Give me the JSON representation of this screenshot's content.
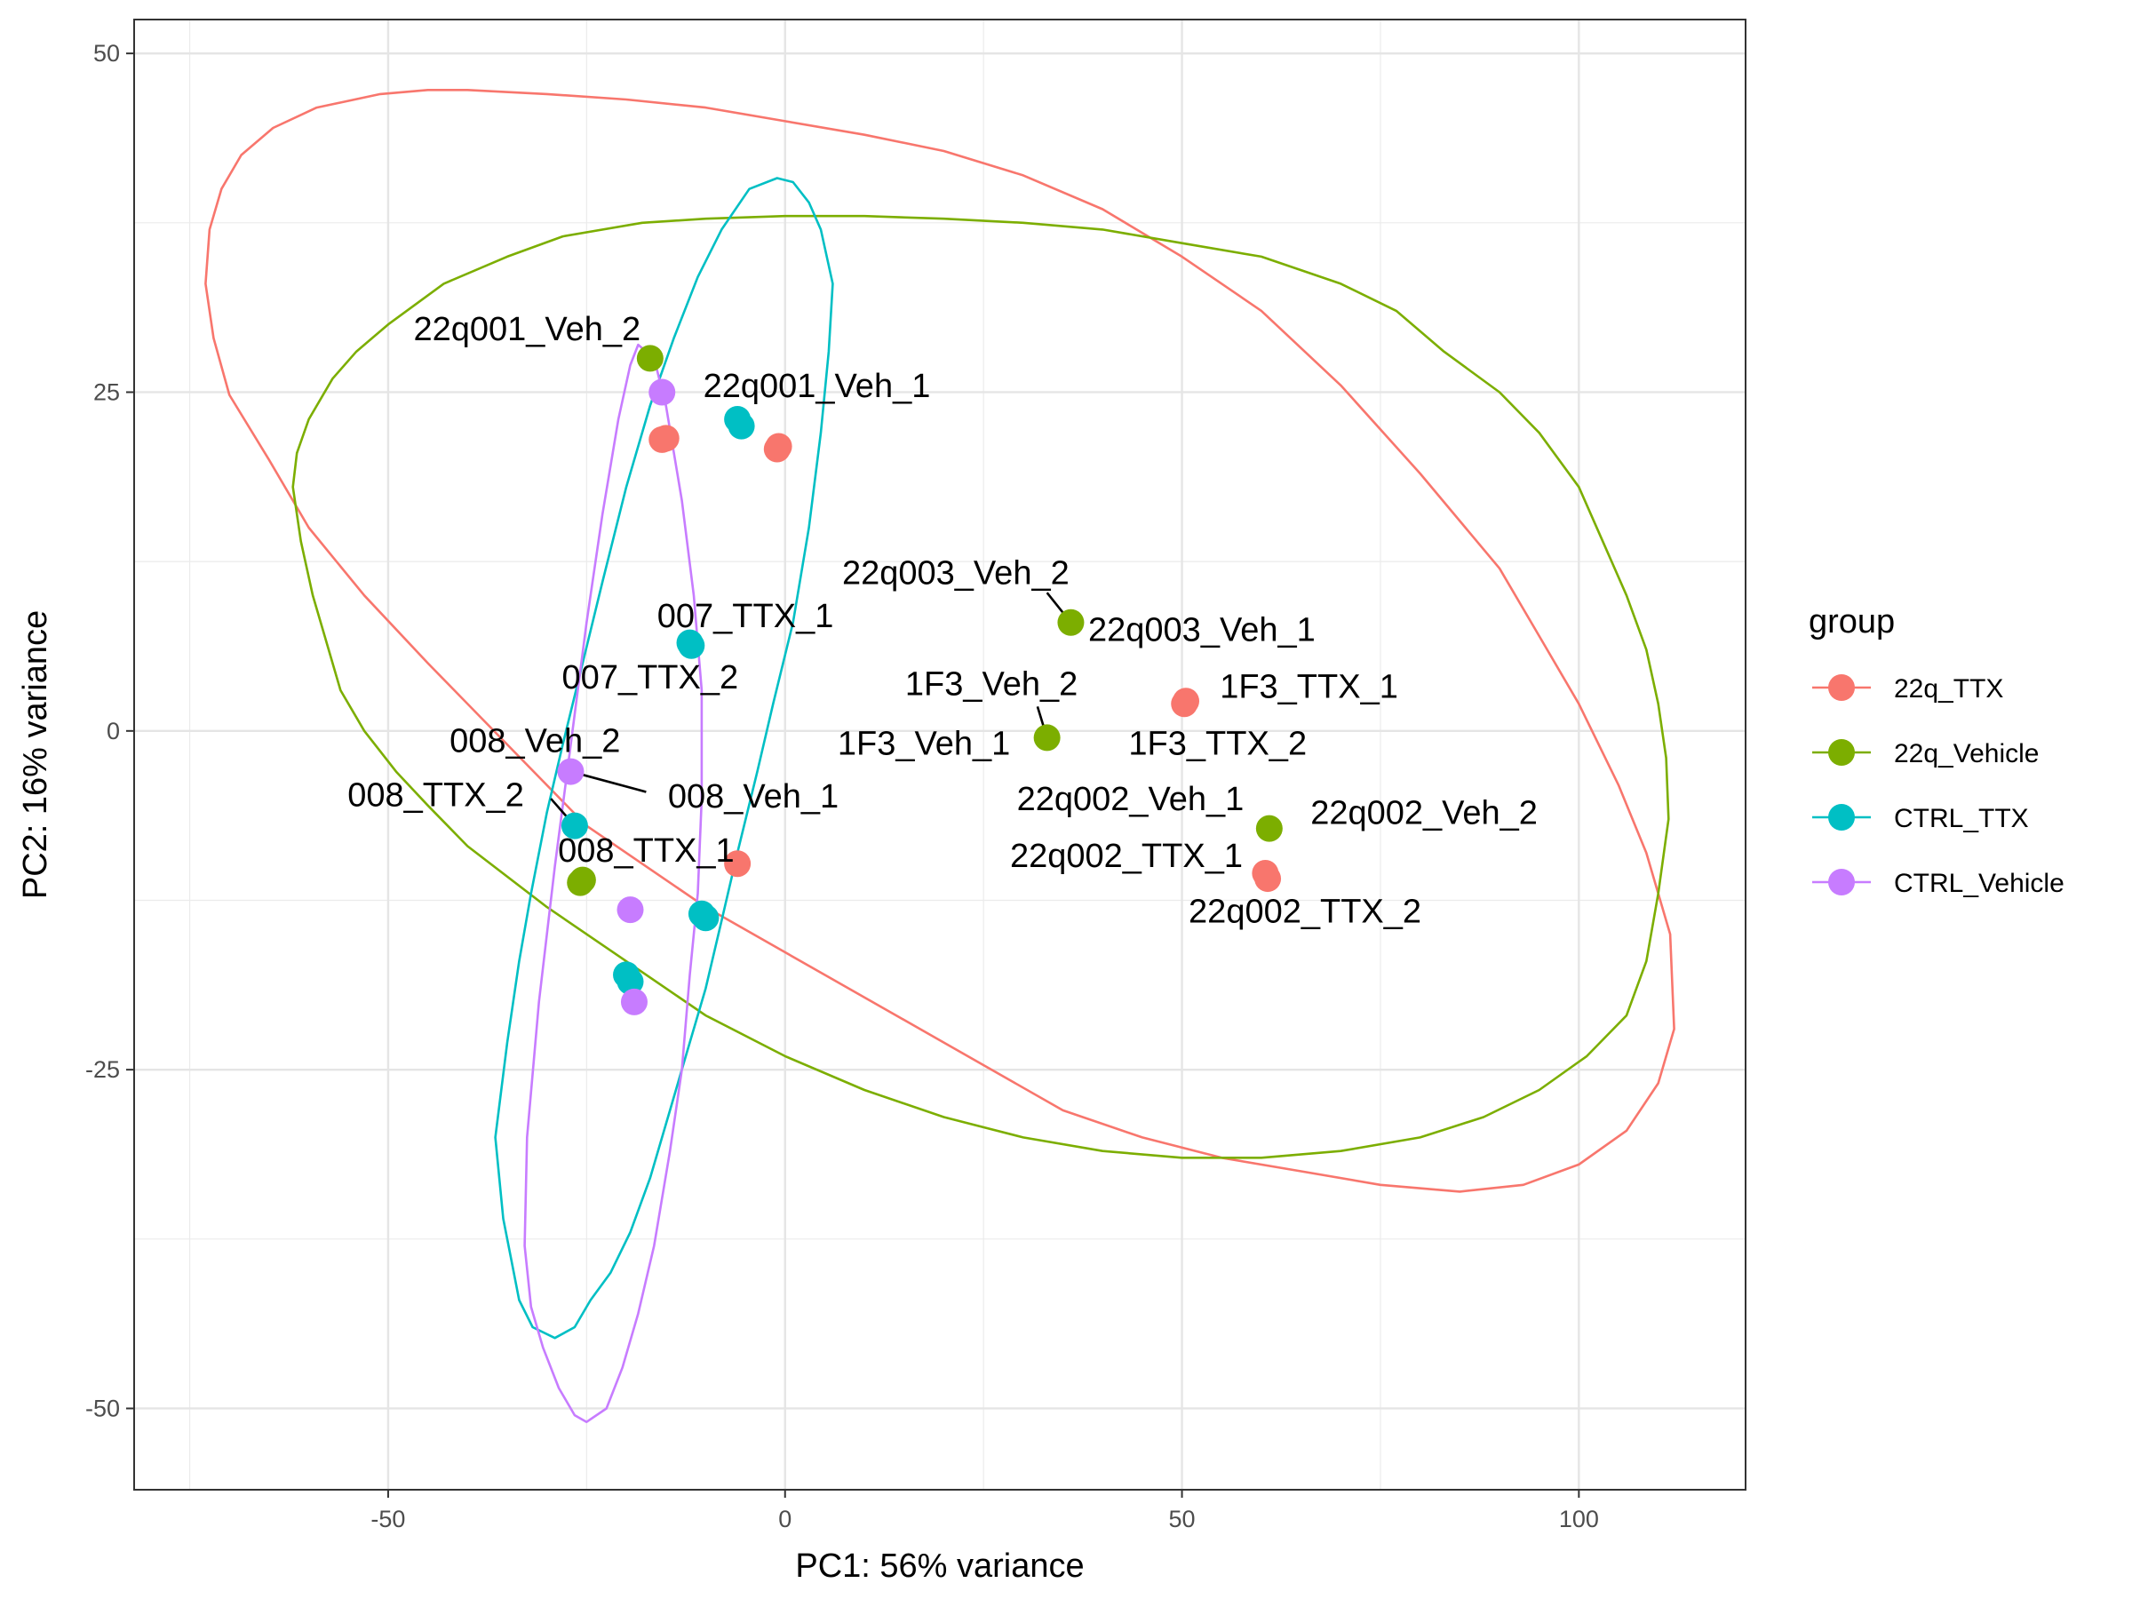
{
  "chart_data": {
    "type": "scatter",
    "title": "",
    "xlabel": "PC1: 56% variance",
    "ylabel": "PC2: 16% variance",
    "xlim": [
      -82,
      121
    ],
    "ylim": [
      -56,
      52.5
    ],
    "xticks": [
      -50,
      0,
      50,
      100
    ],
    "yticks": [
      -50,
      -25,
      0,
      25,
      50
    ],
    "xtick_labels": [
      "-50",
      "0",
      "50",
      "100"
    ],
    "ytick_labels": [
      "-50",
      "-25",
      "0",
      "25",
      "50"
    ],
    "grid": true,
    "legend": {
      "title": "group",
      "position": "right"
    },
    "series": [
      {
        "name": "22q_TTX",
        "color": "#F8766D",
        "points": [
          {
            "x": -15.5,
            "y": 21.5,
            "label": ""
          },
          {
            "x": -15.0,
            "y": 21.6,
            "label": ""
          },
          {
            "x": -1.0,
            "y": 20.8,
            "label": ""
          },
          {
            "x": -0.8,
            "y": 21.0,
            "label": ""
          },
          {
            "x": -6.0,
            "y": -9.8,
            "label": "008_TTX_1"
          },
          {
            "x": 50.3,
            "y": 2.0,
            "label": "1F3_TTX_1"
          },
          {
            "x": 50.5,
            "y": 2.2,
            "label": "1F3_TTX_2"
          },
          {
            "x": 60.5,
            "y": -10.5,
            "label": "22q002_TTX_1"
          },
          {
            "x": 60.8,
            "y": -10.9,
            "label": "22q002_TTX_2"
          }
        ],
        "ellipse": [
          [
            -45,
            47.3
          ],
          [
            -51,
            47
          ],
          [
            -59,
            46
          ],
          [
            -64.5,
            44.5
          ],
          [
            -68.5,
            42.5
          ],
          [
            -71,
            40
          ],
          [
            -72.5,
            37
          ],
          [
            -73,
            33
          ],
          [
            -72,
            29
          ],
          [
            -70,
            24.8
          ],
          [
            -65,
            20
          ],
          [
            -60,
            15
          ],
          [
            -53,
            10
          ],
          [
            -45,
            5
          ],
          [
            -35,
            -1
          ],
          [
            -25,
            -7
          ],
          [
            -10,
            -13
          ],
          [
            5,
            -18
          ],
          [
            20,
            -23
          ],
          [
            35,
            -28
          ],
          [
            45,
            -30
          ],
          [
            55,
            -31.5
          ],
          [
            65,
            -32.5
          ],
          [
            75,
            -33.5
          ],
          [
            85,
            -34
          ],
          [
            93,
            -33.5
          ],
          [
            100,
            -32
          ],
          [
            106,
            -29.5
          ],
          [
            110,
            -26
          ],
          [
            112,
            -22
          ],
          [
            111.5,
            -15
          ],
          [
            108.5,
            -9
          ],
          [
            105,
            -4
          ],
          [
            100,
            2
          ],
          [
            95,
            7
          ],
          [
            90,
            12
          ],
          [
            80,
            19
          ],
          [
            70,
            25.5
          ],
          [
            60,
            31
          ],
          [
            50,
            35
          ],
          [
            40,
            38.5
          ],
          [
            30,
            41
          ],
          [
            20,
            42.8
          ],
          [
            10,
            44
          ],
          [
            0,
            45
          ],
          [
            -10,
            46
          ],
          [
            -20,
            46.6
          ],
          [
            -30,
            47
          ],
          [
            -40,
            47.3
          ],
          [
            -45,
            47.3
          ]
        ]
      },
      {
        "name": "22q_Vehicle",
        "color": "#7CAE00",
        "points": [
          {
            "x": -17.0,
            "y": 27.5,
            "label": "22q001_Veh_2"
          },
          {
            "x": 36.0,
            "y": 8.0,
            "label": "22q003_Veh_1"
          },
          {
            "x": 33.0,
            "y": -0.5,
            "label": "1F3_Veh_1"
          },
          {
            "x": 61.0,
            "y": -7.2,
            "label": "22q002_Veh_2"
          },
          {
            "x": -25.5,
            "y": -11.0,
            "label": ""
          },
          {
            "x": -25.8,
            "y": -11.2,
            "label": ""
          }
        ],
        "ellipse": [
          [
            -10,
            37.8
          ],
          [
            -18,
            37.5
          ],
          [
            -28,
            36.5
          ],
          [
            -35,
            35
          ],
          [
            -43,
            33
          ],
          [
            -50,
            30
          ],
          [
            -54,
            28
          ],
          [
            -57,
            26
          ],
          [
            -60,
            23
          ],
          [
            -61.5,
            20.5
          ],
          [
            -62,
            18
          ],
          [
            -61,
            14
          ],
          [
            -59.5,
            10
          ],
          [
            -58,
            7
          ],
          [
            -56,
            3
          ],
          [
            -53,
            0
          ],
          [
            -49,
            -3
          ],
          [
            -45,
            -5.5
          ],
          [
            -40,
            -8.5
          ],
          [
            -30,
            -13
          ],
          [
            -20,
            -17
          ],
          [
            -10,
            -21
          ],
          [
            0,
            -24
          ],
          [
            10,
            -26.5
          ],
          [
            20,
            -28.5
          ],
          [
            30,
            -30
          ],
          [
            40,
            -31
          ],
          [
            50,
            -31.5
          ],
          [
            60,
            -31.5
          ],
          [
            70,
            -31
          ],
          [
            80,
            -30
          ],
          [
            88,
            -28.5
          ],
          [
            95,
            -26.5
          ],
          [
            101,
            -24
          ],
          [
            106,
            -21
          ],
          [
            108.5,
            -17
          ],
          [
            110,
            -12
          ],
          [
            111.3,
            -6.5
          ],
          [
            111,
            -2
          ],
          [
            110,
            2
          ],
          [
            108.5,
            6
          ],
          [
            106,
            10
          ],
          [
            103,
            14
          ],
          [
            100,
            18
          ],
          [
            95,
            22
          ],
          [
            90,
            25
          ],
          [
            83,
            28
          ],
          [
            77,
            31
          ],
          [
            70,
            33
          ],
          [
            60,
            35
          ],
          [
            50,
            36
          ],
          [
            40,
            37
          ],
          [
            30,
            37.5
          ],
          [
            20,
            37.8
          ],
          [
            10,
            38
          ],
          [
            0,
            38
          ],
          [
            -10,
            37.8
          ]
        ]
      },
      {
        "name": "CTRL_TTX",
        "color": "#00BFC4",
        "points": [
          {
            "x": -6.0,
            "y": 23.0,
            "label": ""
          },
          {
            "x": -5.5,
            "y": 22.5,
            "label": ""
          },
          {
            "x": -12.0,
            "y": 6.5,
            "label": "007_TTX_1"
          },
          {
            "x": -11.8,
            "y": 6.3,
            "label": "007_TTX_2"
          },
          {
            "x": -26.5,
            "y": -7.0,
            "label": "008_TTX_2"
          },
          {
            "x": -10.5,
            "y": -13.5,
            "label": ""
          },
          {
            "x": -10.0,
            "y": -13.8,
            "label": ""
          },
          {
            "x": -20.0,
            "y": -18.0,
            "label": ""
          },
          {
            "x": -19.5,
            "y": -18.5,
            "label": ""
          }
        ],
        "ellipse": [
          [
            -1,
            40.8
          ],
          [
            -4.5,
            40
          ],
          [
            -8,
            37
          ],
          [
            -11,
            33.5
          ],
          [
            -14,
            29
          ],
          [
            -17,
            24
          ],
          [
            -20,
            18
          ],
          [
            -23,
            11
          ],
          [
            -25.5,
            5
          ],
          [
            -28,
            -1
          ],
          [
            -30,
            -6
          ],
          [
            -32,
            -12
          ],
          [
            -33.5,
            -17
          ],
          [
            -35,
            -23
          ],
          [
            -36.5,
            -30
          ],
          [
            -35.5,
            -36
          ],
          [
            -34.5,
            -39
          ],
          [
            -33.5,
            -42
          ],
          [
            -31.8,
            -44
          ],
          [
            -29,
            -44.8
          ],
          [
            -26.5,
            -44
          ],
          [
            -24.5,
            -42
          ],
          [
            -22,
            -40
          ],
          [
            -19.5,
            -37
          ],
          [
            -17,
            -33
          ],
          [
            -14.5,
            -28
          ],
          [
            -12.5,
            -24
          ],
          [
            -10,
            -19
          ],
          [
            -8,
            -14
          ],
          [
            -6,
            -9
          ],
          [
            -3.5,
            -3
          ],
          [
            -1.5,
            2
          ],
          [
            1,
            8
          ],
          [
            3,
            15
          ],
          [
            4.5,
            22
          ],
          [
            5.5,
            28
          ],
          [
            6,
            33
          ],
          [
            4.5,
            37
          ],
          [
            3,
            39
          ],
          [
            1,
            40.5
          ],
          [
            -1,
            40.8
          ]
        ]
      },
      {
        "name": "CTRL_Vehicle",
        "color": "#C77CFF",
        "points": [
          {
            "x": -15.5,
            "y": 25.0,
            "label": "22q001_Veh_1"
          },
          {
            "x": -27.0,
            "y": -3.0,
            "label": "008_Veh_1"
          },
          {
            "x": -19.5,
            "y": -13.2,
            "label": ""
          },
          {
            "x": -19.0,
            "y": -20.0,
            "label": ""
          }
        ],
        "ellipse": [
          [
            -18.5,
            28.5
          ],
          [
            -19.5,
            27
          ],
          [
            -21,
            23
          ],
          [
            -23,
            16
          ],
          [
            -25,
            8
          ],
          [
            -27,
            -1
          ],
          [
            -29,
            -10
          ],
          [
            -31,
            -20
          ],
          [
            -32.5,
            -30
          ],
          [
            -32.8,
            -38
          ],
          [
            -32,
            -42.5
          ],
          [
            -30.5,
            -45.5
          ],
          [
            -28.5,
            -48.5
          ],
          [
            -26.5,
            -50.5
          ],
          [
            -25,
            -51
          ],
          [
            -22.5,
            -50
          ],
          [
            -20.5,
            -47
          ],
          [
            -18.5,
            -43
          ],
          [
            -16.5,
            -38
          ],
          [
            -14.5,
            -31
          ],
          [
            -13,
            -25
          ],
          [
            -12,
            -18
          ],
          [
            -11,
            -12
          ],
          [
            -10.5,
            -5
          ],
          [
            -10.5,
            3
          ],
          [
            -11.5,
            10
          ],
          [
            -13,
            17
          ],
          [
            -15,
            24
          ],
          [
            -16.5,
            27.5
          ],
          [
            -18.5,
            28.5
          ]
        ]
      }
    ],
    "annotations": [
      {
        "text": "22q001_Veh_2",
        "anchor_x": -17.0,
        "anchor_y": 27.5,
        "x": -32.5,
        "y": 29.7,
        "leader": false
      },
      {
        "text": "22q001_Veh_1",
        "anchor_x": -15.5,
        "anchor_y": 25.0,
        "x": 4,
        "y": 25.5,
        "leader": false
      },
      {
        "text": "22q003_Veh_2",
        "anchor_x": 36.0,
        "anchor_y": 8.0,
        "x": 21.5,
        "y": 11.7,
        "leader": true
      },
      {
        "text": "22q003_Veh_1",
        "anchor_x": 36.0,
        "anchor_y": 8.0,
        "x": 52.5,
        "y": 7.5,
        "leader": false
      },
      {
        "text": "007_TTX_1",
        "anchor_x": -12.0,
        "anchor_y": 6.5,
        "x": -5,
        "y": 8.5,
        "leader": false
      },
      {
        "text": "007_TTX_2",
        "anchor_x": -11.8,
        "anchor_y": 6.3,
        "x": -17,
        "y": 4,
        "leader": false
      },
      {
        "text": "1F3_Veh_2",
        "anchor_x": 33.0,
        "anchor_y": -0.5,
        "x": 26,
        "y": 3.5,
        "leader": true
      },
      {
        "text": "1F3_TTX_1",
        "anchor_x": 50.3,
        "anchor_y": 2.0,
        "x": 66,
        "y": 3.3,
        "leader": false
      },
      {
        "text": "1F3_Veh_1",
        "anchor_x": 33.0,
        "anchor_y": -0.5,
        "x": 17.5,
        "y": -0.9,
        "leader": false
      },
      {
        "text": "1F3_TTX_2",
        "anchor_x": 50.5,
        "anchor_y": 2.2,
        "x": 54.5,
        "y": -0.9,
        "leader": false
      },
      {
        "text": "008_Veh_2",
        "anchor_x": -27.0,
        "anchor_y": -3.0,
        "x": -31.5,
        "y": -0.7,
        "leader": false
      },
      {
        "text": "008_Veh_1",
        "anchor_x": -27.0,
        "anchor_y": -3.0,
        "x": -4,
        "y": -4.8,
        "leader": true
      },
      {
        "text": "008_TTX_2",
        "anchor_x": -26.5,
        "anchor_y": -7.0,
        "x": -44,
        "y": -4.7,
        "leader": true
      },
      {
        "text": "008_TTX_1",
        "anchor_x": -6.0,
        "anchor_y": -9.8,
        "x": -17.5,
        "y": -8.8,
        "leader": false
      },
      {
        "text": "22q002_Veh_1",
        "anchor_x": 60.5,
        "anchor_y": -7.2,
        "x": 43.5,
        "y": -5.0,
        "leader": false
      },
      {
        "text": "22q002_Veh_2",
        "anchor_x": 61.0,
        "anchor_y": -7.2,
        "x": 80.5,
        "y": -6.0,
        "leader": false
      },
      {
        "text": "22q002_TTX_1",
        "anchor_x": 60.5,
        "anchor_y": -10.5,
        "x": 43,
        "y": -9.2,
        "leader": false
      },
      {
        "text": "22q002_TTX_2",
        "anchor_x": 60.8,
        "anchor_y": -10.9,
        "x": 65.5,
        "y": -13.3,
        "leader": false
      }
    ]
  }
}
